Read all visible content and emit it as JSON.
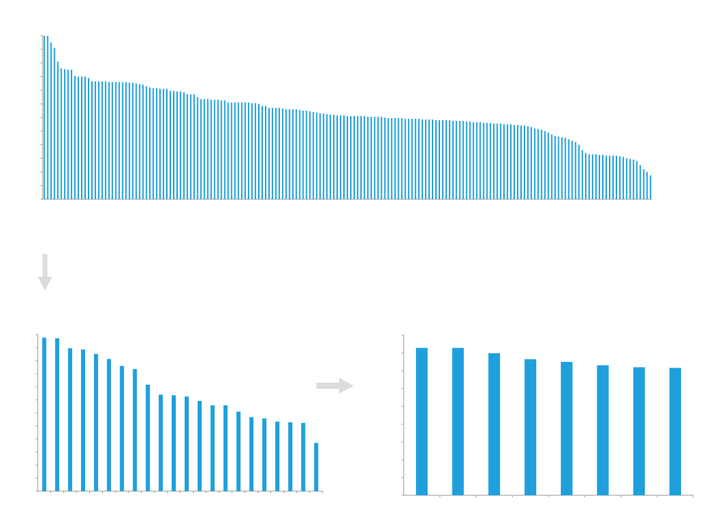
{
  "colors": {
    "bar": "#1fa0dc",
    "axis": "#999999",
    "arrow": "#dcdcdc"
  },
  "chart_data": [
    {
      "type": "bar",
      "role": "all-items",
      "values": [
        240,
        240,
        230,
        222,
        202,
        192,
        191,
        190,
        190,
        181,
        180,
        180,
        180,
        178,
        173,
        173,
        173,
        173,
        173,
        172,
        172,
        172,
        172,
        172,
        172,
        171,
        171,
        170,
        169,
        168,
        166,
        164,
        163,
        163,
        162,
        162,
        162,
        159,
        159,
        158,
        158,
        157,
        154,
        154,
        154,
        150,
        147,
        147,
        147,
        146,
        146,
        146,
        145,
        145,
        142,
        142,
        142,
        142,
        142,
        142,
        142,
        141,
        141,
        140,
        137,
        137,
        134,
        134,
        134,
        134,
        133,
        132,
        132,
        132,
        132,
        131,
        130,
        130,
        129,
        128,
        127,
        126,
        126,
        125,
        124,
        124,
        123,
        123,
        123,
        122,
        122,
        122,
        122,
        122,
        122,
        121,
        121,
        121,
        121,
        121,
        120,
        119,
        119,
        119,
        119,
        119,
        118,
        118,
        118,
        118,
        118,
        117,
        117,
        117,
        117,
        116,
        116,
        116,
        116,
        116,
        115,
        115,
        115,
        115,
        114,
        114,
        113,
        113,
        113,
        112,
        112,
        112,
        111,
        111,
        111,
        110,
        110,
        110,
        109,
        109,
        108,
        108,
        107,
        106,
        104,
        103,
        102,
        100,
        98,
        95,
        93,
        92,
        91,
        90,
        88,
        86,
        84,
        80,
        72,
        68,
        66,
        66,
        66,
        65,
        65,
        64,
        64,
        64,
        64,
        63,
        62,
        60,
        59,
        58,
        56,
        50,
        44,
        40,
        35
      ],
      "ylim": [
        0,
        240
      ],
      "grid": false
    },
    {
      "type": "bar",
      "role": "top-items",
      "values": [
        245,
        244,
        228,
        226,
        219,
        211,
        200,
        195,
        170,
        154,
        153,
        151,
        144,
        137,
        137,
        127,
        118,
        116,
        111,
        110,
        109,
        77
      ],
      "ylim": [
        0,
        250
      ],
      "grid": false
    },
    {
      "type": "bar",
      "role": "selected-items",
      "values": [
        221,
        221,
        213,
        204,
        200,
        195,
        192,
        191
      ],
      "ylim": [
        0,
        240
      ],
      "grid": false
    }
  ]
}
